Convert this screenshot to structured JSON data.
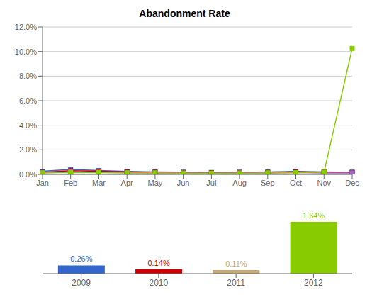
{
  "chart_data": [
    {
      "type": "line",
      "title": "Abandonment Rate",
      "categories": [
        "Jan",
        "Feb",
        "Mar",
        "Apr",
        "May",
        "Jun",
        "Jul",
        "Aug",
        "Sep",
        "Oct",
        "Nov",
        "Dec"
      ],
      "series": [
        {
          "color": "#3366CC",
          "marker": "square",
          "values": [
            0.0026,
            0.004,
            0.0032,
            0.0024,
            0.002,
            0.0018,
            0.0016,
            0.0018,
            0.002,
            0.0024,
            0.002,
            0.0018
          ]
        },
        {
          "color": "#CC0000",
          "marker": "square",
          "values": [
            0.0018,
            0.003,
            0.0026,
            0.002,
            0.0018,
            0.0016,
            0.0014,
            0.0016,
            0.0016,
            0.002,
            0.0018,
            0.0016
          ]
        },
        {
          "color": "#9966CC",
          "marker": "square",
          "values": [
            0.0014,
            0.002,
            0.0018,
            0.0014,
            0.0012,
            0.0012,
            0.001,
            0.0012,
            0.0012,
            0.0014,
            0.0012,
            0.0012
          ]
        },
        {
          "color": "#88CC00",
          "marker": "square",
          "values": [
            0.0012,
            0.0016,
            0.0014,
            0.0012,
            0.0012,
            0.001,
            0.001,
            0.001,
            0.0012,
            0.0014,
            0.0018,
            0.1025
          ]
        }
      ],
      "ylim": [
        0.0,
        0.12
      ],
      "yticks": [
        {
          "value": 0.0,
          "label": "0.0%"
        },
        {
          "value": 0.02,
          "label": "2.0%"
        },
        {
          "value": 0.04,
          "label": "4.0%"
        },
        {
          "value": 0.06,
          "label": "6.0%"
        },
        {
          "value": 0.08,
          "label": "8.0%"
        },
        {
          "value": 0.1,
          "label": "10.0%"
        },
        {
          "value": 0.12,
          "label": "12.0%"
        }
      ],
      "grid": true
    },
    {
      "type": "bar",
      "categories": [
        "2009",
        "2010",
        "2011",
        "2012"
      ],
      "values": [
        0.0026,
        0.0014,
        0.0011,
        0.0164
      ],
      "value_labels": [
        "0.26%",
        "0.14%",
        "0.11%",
        "1.64%"
      ],
      "colors": [
        "#3366CC",
        "#CC0000",
        "#C8A870",
        "#88CC00"
      ],
      "ylim": [
        0,
        0.022
      ],
      "data_labels": true,
      "tick_labels": "x",
      "grid": false
    }
  ]
}
